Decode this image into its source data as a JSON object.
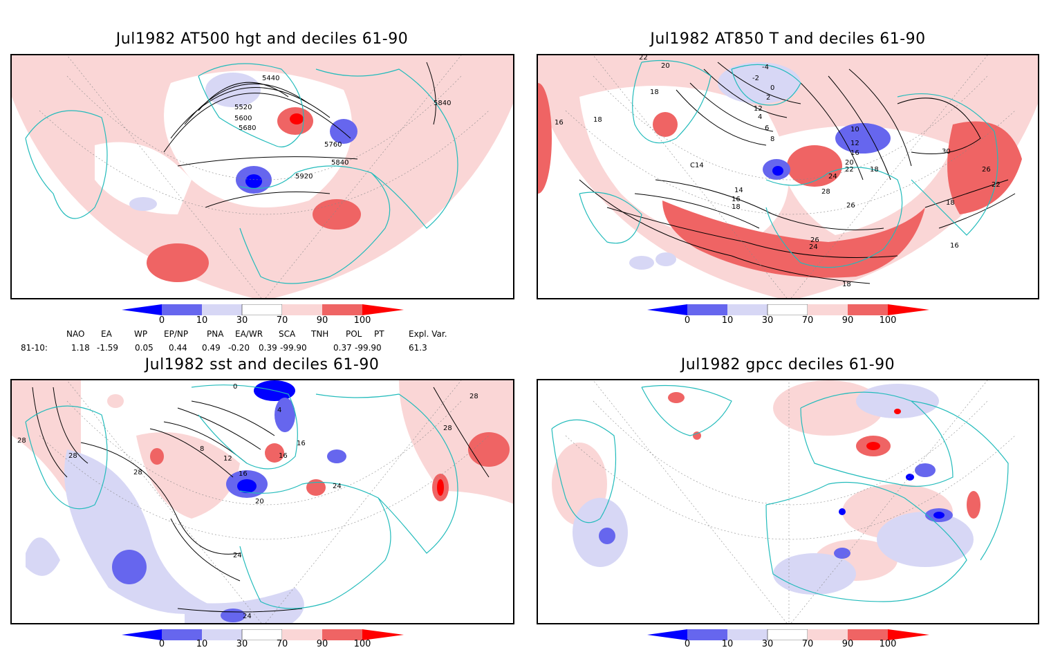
{
  "panels": [
    {
      "title": "Jul1982 AT500 hgt and deciles 61-90",
      "contour_labels": [
        "5440",
        "5520",
        "5600",
        "5680",
        "5760",
        "5840",
        "5920",
        "5840"
      ]
    },
    {
      "title": "Jul1982 AT850 T and deciles 61-90",
      "contour_labels": [
        "22",
        "20",
        "18",
        "16",
        "18",
        "-4",
        "-2",
        "0",
        "2",
        "4",
        "6",
        "8",
        "12",
        "14",
        "16",
        "18",
        "20",
        "22",
        "24",
        "26",
        "28",
        "30",
        "10",
        "12",
        "16",
        "18",
        "26",
        "18",
        "16",
        "18",
        "22",
        "24",
        "26",
        "C14"
      ]
    },
    {
      "title": "Jul1982 sst and deciles 61-90",
      "contour_labels": [
        "28",
        "28",
        "28",
        "28",
        "8",
        "12",
        "16",
        "20",
        "24",
        "24",
        "0",
        "4",
        "16",
        "16",
        "24",
        "28"
      ]
    },
    {
      "title": "Jul1982 gpcc deciles 61-90",
      "contour_labels": []
    }
  ],
  "colorbar": {
    "labels": [
      "0",
      "10",
      "30",
      "70",
      "90",
      "100"
    ],
    "colors": [
      "#0000ff",
      "#6666ee",
      "#d7d7f5",
      "#ffffff",
      "#fad6d6",
      "#ef6464",
      "#ff0000"
    ]
  },
  "indices": {
    "headers": [
      "NAO",
      "EA",
      "WP",
      "EP/NP",
      "PNA",
      "EA/WR",
      "SCA",
      "TNH",
      "POL",
      "PT",
      "Expl. Var."
    ],
    "row_label": "81-10:",
    "values": [
      "1.18",
      "-1.59",
      "0.05",
      "0.44",
      "0.49",
      "-0.20",
      "0.39",
      "-99.90",
      "0.37",
      "-99.90",
      "61.3"
    ]
  },
  "style": {
    "coast_color": "#22bbbb",
    "light_red": "#fad6d6",
    "mid_red": "#ef6464",
    "dark_red": "#ff0000",
    "light_blue": "#d7d7f5",
    "mid_blue": "#6666ee",
    "dark_blue": "#0000ff"
  }
}
